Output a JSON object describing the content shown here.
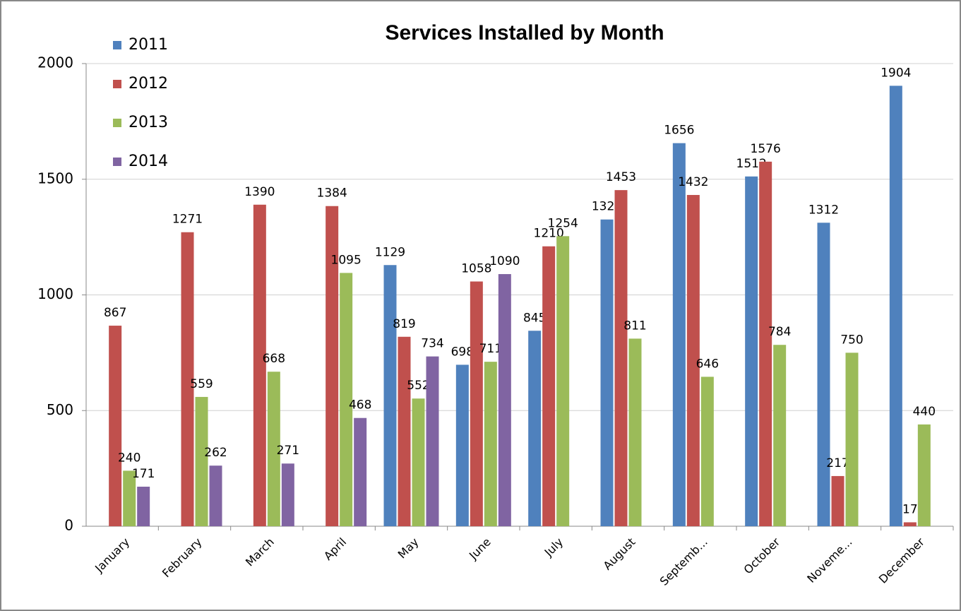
{
  "chart_data": {
    "type": "bar",
    "title": "Services Installed by Month",
    "categories": [
      "January",
      "February",
      "March",
      "April",
      "May",
      "June",
      "July",
      "August",
      "Septemb...",
      "October",
      "Noveme...",
      "December"
    ],
    "series": [
      {
        "name": "2011",
        "color": "#4f81bd",
        "values": [
          null,
          null,
          null,
          null,
          1129,
          698,
          845,
          1326,
          1656,
          1512,
          1312,
          1904
        ]
      },
      {
        "name": "2012",
        "color": "#c0504d",
        "values": [
          867,
          1271,
          1390,
          1384,
          819,
          1058,
          1210,
          1453,
          1432,
          1576,
          217,
          17
        ]
      },
      {
        "name": "2013",
        "color": "#9bbb59",
        "values": [
          240,
          559,
          668,
          1095,
          552,
          711,
          1254,
          811,
          646,
          784,
          750,
          440
        ]
      },
      {
        "name": "2014",
        "color": "#8064a2",
        "values": [
          171,
          262,
          271,
          468,
          734,
          1090,
          null,
          null,
          null,
          null,
          null,
          null
        ]
      }
    ],
    "ylim": [
      0,
      2000
    ],
    "yticks": [
      0,
      500,
      1000,
      1500,
      2000
    ],
    "grid": true,
    "legend": "top-left"
  }
}
